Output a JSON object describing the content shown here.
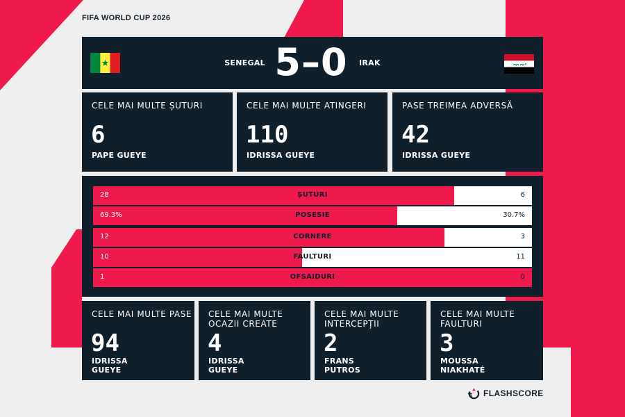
{
  "event": {
    "title": "FIFA WORLD CUP 2026"
  },
  "match": {
    "home": {
      "name": "SENEGAL",
      "flag": "senegal-flag"
    },
    "away": {
      "name": "IRAK",
      "flag": "iraq-flag"
    },
    "score": "5–0"
  },
  "top_cards": [
    {
      "label": "CELE MAI MULTE ȘUTURI",
      "value": "6",
      "player": "PAPE GUEYE"
    },
    {
      "label": "CELE MAI MULTE ATINGERI",
      "value": "110",
      "player": "IDRISSA GUEYE"
    },
    {
      "label": "PASE TREIMEA ADVERSĂ",
      "value": "42",
      "player": "IDRISSA GUEYE"
    }
  ],
  "stats": [
    {
      "label": "ȘUTURI",
      "home": "28",
      "away": "6",
      "home_share": 0.8235
    },
    {
      "label": "POSESIE",
      "home": "69.3%",
      "away": "30.7%",
      "home_share": 0.693
    },
    {
      "label": "CORNERE",
      "home": "12",
      "away": "3",
      "home_share": 0.8
    },
    {
      "label": "FAULTURI",
      "home": "10",
      "away": "11",
      "home_share": 0.476
    },
    {
      "label": "OFSAIDURI",
      "home": "1",
      "away": "0",
      "home_share": 1.0
    }
  ],
  "bottom_cards": [
    {
      "label_line1": "CELE MAI MULTE PASE",
      "label_line2": "",
      "value": "94",
      "player_line1": "IDRISSA",
      "player_line2": "GUEYE"
    },
    {
      "label_line1": "CELE MAI MULTE",
      "label_line2": "OCAZII CREATE",
      "value": "4",
      "player_line1": "IDRISSA",
      "player_line2": "GUEYE"
    },
    {
      "label_line1": "CELE MAI MULTE",
      "label_line2": "INTERCEPȚII",
      "value": "2",
      "player_line1": "FRANS",
      "player_line2": "PUTROS"
    },
    {
      "label_line1": "CELE MAI MULTE",
      "label_line2": "FAULTURI",
      "value": "3",
      "player_line1": "MOUSSA",
      "player_line2": "NIAKHATÉ"
    }
  ],
  "brand": {
    "name": "FLASHSCORE",
    "icon": "flashscore-logo-icon"
  },
  "colors": {
    "panel": "#0f1f2c",
    "accent": "#ef1a4b",
    "background": "#efefef",
    "dark_text": "#121f2b"
  }
}
